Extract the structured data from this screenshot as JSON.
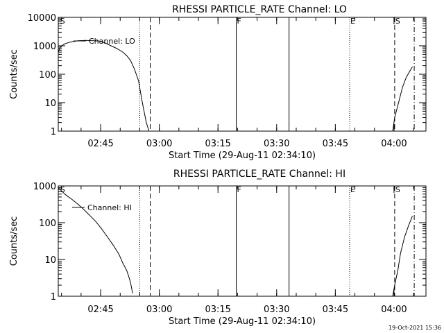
{
  "chart_data": [
    {
      "type": "line",
      "title": "RHESSI PARTICLE_RATE Channel: LO",
      "xlabel": "Start Time (29-Aug-11 02:34:10)",
      "ylabel": "Counts/sec",
      "yscale": "log",
      "ylim": [
        1,
        10000
      ],
      "xlim_minutes_from_start": [
        0,
        94
      ],
      "y_ticks": [
        {
          "value": 1,
          "label": "1"
        },
        {
          "value": 10,
          "label": "10"
        },
        {
          "value": 100,
          "label": "100"
        },
        {
          "value": 1000,
          "label": "1000"
        },
        {
          "value": 10000,
          "label": "10000"
        }
      ],
      "x_ticks": [
        {
          "value": 10.83,
          "label": "02:45"
        },
        {
          "value": 25.83,
          "label": "03:00"
        },
        {
          "value": 40.83,
          "label": "03:15"
        },
        {
          "value": 55.83,
          "label": "03:30"
        },
        {
          "value": 70.83,
          "label": "03:45"
        },
        {
          "value": 85.83,
          "label": "04:00"
        }
      ],
      "legend": "Channel: LO",
      "series": [
        {
          "name": "Channel: LO",
          "segments": [
            [
              [
                0,
                600
              ],
              [
                0.5,
                900
              ],
              [
                1.5,
                1150
              ],
              [
                3,
                1350
              ],
              [
                5,
                1500
              ],
              [
                7,
                1550
              ],
              [
                9,
                1500
              ],
              [
                11,
                1450
              ],
              [
                12,
                1250
              ],
              [
                13.5,
                1000
              ],
              [
                15,
                800
              ],
              [
                16.5,
                600
              ],
              [
                17.5,
                450
              ],
              [
                18.5,
                300
              ],
              [
                19.5,
                150
              ],
              [
                20.5,
                60
              ],
              [
                21.5,
                10
              ],
              [
                22.5,
                2
              ],
              [
                23.2,
                1
              ]
            ],
            [
              [
                85.5,
                1
              ],
              [
                86,
                3
              ],
              [
                87,
                10
              ],
              [
                88,
                35
              ],
              [
                89,
                80
              ],
              [
                90.5,
                180
              ]
            ]
          ]
        }
      ],
      "markers": [
        {
          "label": "S",
          "x": 0.3,
          "style": "none"
        },
        {
          "label": "",
          "x": 20.8,
          "style": "dotted"
        },
        {
          "label": "",
          "x": 23.5,
          "style": "dashed"
        },
        {
          "label": "F",
          "x": 45.5,
          "style": "solid"
        },
        {
          "label": "",
          "x": 59,
          "style": "solid"
        },
        {
          "label": "E",
          "x": 74.5,
          "style": "dotted"
        },
        {
          "label": "S",
          "x": 86,
          "style": "dashed"
        },
        {
          "label": "",
          "x": 91,
          "style": "dashdot"
        }
      ]
    },
    {
      "type": "line",
      "title": "RHESSI PARTICLE_RATE Channel: HI",
      "xlabel": "Start Time (29-Aug-11 02:34:10)",
      "ylabel": "Counts/sec",
      "yscale": "log",
      "ylim": [
        1,
        1000
      ],
      "xlim_minutes_from_start": [
        0,
        94
      ],
      "y_ticks": [
        {
          "value": 1,
          "label": "1"
        },
        {
          "value": 10,
          "label": "10"
        },
        {
          "value": 100,
          "label": "100"
        },
        {
          "value": 1000,
          "label": "1000"
        }
      ],
      "x_ticks": [
        {
          "value": 10.83,
          "label": "02:45"
        },
        {
          "value": 25.83,
          "label": "03:00"
        },
        {
          "value": 40.83,
          "label": "03:15"
        },
        {
          "value": 55.83,
          "label": "03:30"
        },
        {
          "value": 70.83,
          "label": "03:45"
        },
        {
          "value": 85.83,
          "label": "04:00"
        }
      ],
      "legend": "Channel: HI",
      "series": [
        {
          "name": "Channel: HI",
          "segments": [
            [
              [
                0,
                900
              ],
              [
                1,
                700
              ],
              [
                2,
                560
              ],
              [
                3.5,
                430
              ],
              [
                5,
                320
              ],
              [
                6.5,
                230
              ],
              [
                8,
                160
              ],
              [
                9.5,
                110
              ],
              [
                11,
                70
              ],
              [
                12.5,
                42
              ],
              [
                14,
                25
              ],
              [
                15.5,
                14
              ],
              [
                16.5,
                8
              ],
              [
                17.5,
                5
              ],
              [
                18.2,
                3
              ],
              [
                18.6,
                2
              ],
              [
                19,
                1.2
              ]
            ],
            [
              [
                85.5,
                1
              ],
              [
                86,
                2
              ],
              [
                86.8,
                5
              ],
              [
                87.5,
                15
              ],
              [
                88.5,
                40
              ],
              [
                89.5,
                80
              ],
              [
                90.5,
                150
              ]
            ]
          ]
        }
      ],
      "markers": [
        {
          "label": "S",
          "x": 0.3,
          "style": "none"
        },
        {
          "label": "",
          "x": 20.8,
          "style": "dotted"
        },
        {
          "label": "",
          "x": 23.5,
          "style": "dashed"
        },
        {
          "label": "F",
          "x": 45.5,
          "style": "solid"
        },
        {
          "label": "",
          "x": 59,
          "style": "solid"
        },
        {
          "label": "E",
          "x": 74.5,
          "style": "dotted"
        },
        {
          "label": "S",
          "x": 86,
          "style": "dashed"
        },
        {
          "label": "",
          "x": 91,
          "style": "dashdot"
        }
      ]
    }
  ],
  "footer": {
    "timestamp": "19-Oct-2021 15:36"
  }
}
